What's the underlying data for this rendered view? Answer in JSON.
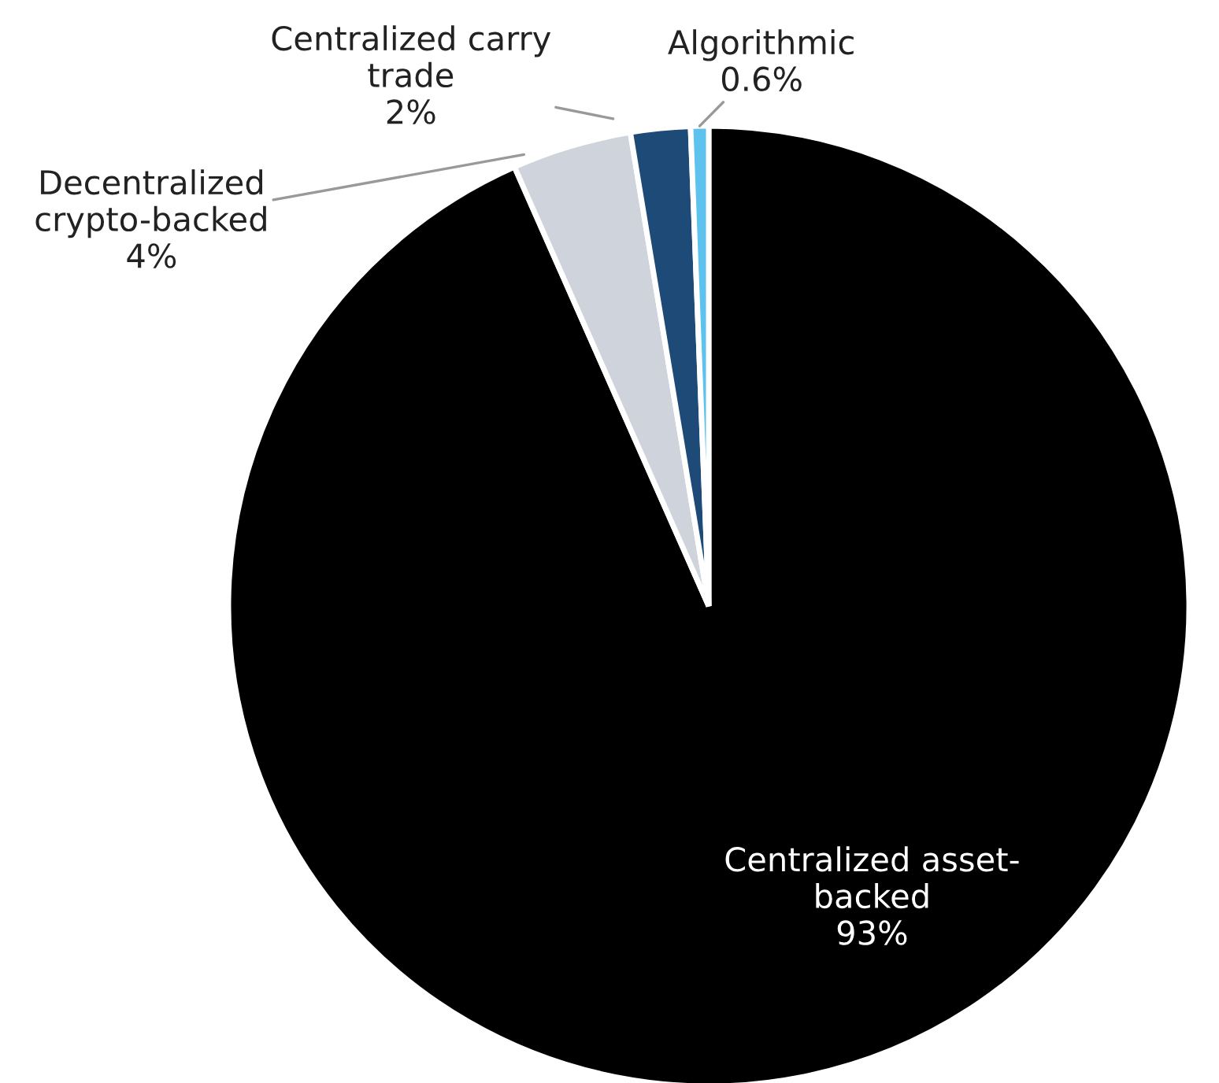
{
  "chart_data": {
    "type": "pie",
    "categories": [
      "Centralized asset-\nbacked",
      "Decentralized\ncrypto-backed",
      "Centralized carry\ntrade",
      "Algorithmic"
    ],
    "values": [
      93,
      4,
      2,
      0.6
    ],
    "colors": [
      "#000000",
      "#cfd4dc",
      "#1e4a78",
      "#5ec2ef"
    ],
    "value_labels": [
      "93%",
      "4%",
      "2%",
      "0.6%"
    ]
  }
}
